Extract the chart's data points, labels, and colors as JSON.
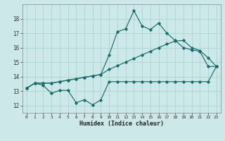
{
  "bg_color": "#cce8e8",
  "line_color": "#1a6e6a",
  "grid_color": "#aed4d4",
  "xlabel": "Humidex (Indice chaleur)",
  "ylim": [
    11.5,
    19.0
  ],
  "xlim": [
    -0.5,
    23.5
  ],
  "yticks": [
    12,
    13,
    14,
    15,
    16,
    17,
    18
  ],
  "xticks": [
    0,
    1,
    2,
    3,
    4,
    5,
    6,
    7,
    8,
    9,
    10,
    11,
    12,
    13,
    14,
    15,
    16,
    17,
    18,
    19,
    20,
    21,
    22,
    23
  ],
  "line1_x": [
    0,
    1,
    2,
    3,
    4,
    5,
    6,
    7,
    8,
    9,
    10,
    11,
    12,
    13,
    14,
    15,
    16,
    17,
    18,
    19,
    20,
    21,
    22,
    23
  ],
  "line1_y": [
    13.2,
    13.55,
    13.4,
    12.85,
    13.05,
    13.05,
    12.2,
    12.4,
    12.05,
    12.4,
    13.65,
    13.65,
    13.65,
    13.65,
    13.65,
    13.65,
    13.65,
    13.65,
    13.65,
    13.65,
    13.65,
    13.65,
    13.65,
    14.7
  ],
  "line2_x": [
    0,
    1,
    2,
    3,
    4,
    5,
    6,
    7,
    8,
    9,
    10,
    11,
    12,
    13,
    14,
    15,
    16,
    17,
    18,
    19,
    20,
    21,
    22,
    23
  ],
  "line2_y": [
    13.2,
    13.55,
    13.55,
    13.55,
    13.65,
    13.75,
    13.85,
    13.95,
    14.05,
    14.15,
    14.5,
    14.75,
    15.0,
    15.25,
    15.5,
    15.75,
    16.0,
    16.25,
    16.45,
    16.5,
    16.0,
    15.8,
    15.3,
    14.7
  ],
  "line3_x": [
    0,
    1,
    2,
    3,
    4,
    5,
    6,
    7,
    8,
    9,
    10,
    11,
    12,
    13,
    14,
    15,
    16,
    17,
    18,
    19,
    20,
    21,
    22,
    23
  ],
  "line3_y": [
    13.2,
    13.55,
    13.55,
    13.55,
    13.65,
    13.75,
    13.85,
    13.95,
    14.05,
    14.15,
    15.5,
    17.1,
    17.3,
    18.55,
    17.5,
    17.25,
    17.7,
    17.0,
    16.5,
    16.0,
    15.85,
    15.75,
    14.7,
    14.7
  ]
}
